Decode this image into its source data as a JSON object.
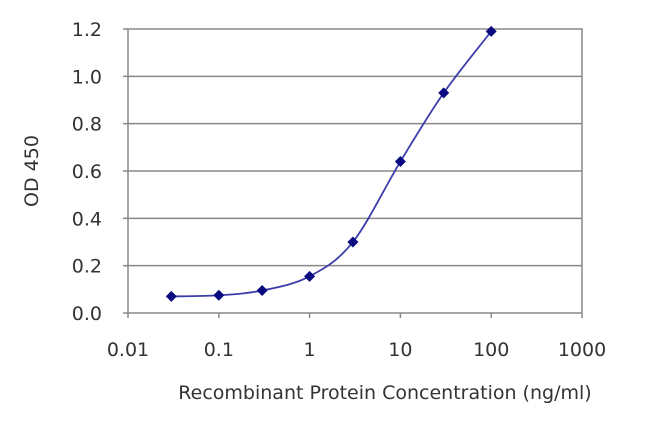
{
  "chart_data": {
    "type": "line",
    "title": "",
    "xlabel": "Recombinant Protein Concentration (ng/ml)",
    "ylabel": "OD 450",
    "x_scale": "log",
    "xlim": [
      0.01,
      1000
    ],
    "ylim": [
      0,
      1.2
    ],
    "x_ticks": [
      "0.01",
      "0.1",
      "1",
      "10",
      "100",
      "1000"
    ],
    "y_ticks": [
      "0.0",
      "0.2",
      "0.4",
      "0.6",
      "0.8",
      "1.0",
      "1.2"
    ],
    "grid": "horizontal",
    "series": [
      {
        "x": [
          0.03,
          0.1,
          0.3,
          1,
          3,
          10,
          30,
          100
        ],
        "y": [
          0.07,
          0.075,
          0.095,
          0.155,
          0.3,
          0.64,
          0.93,
          1.19
        ]
      }
    ],
    "colors": {
      "line": "#3d3daa",
      "marker": "#0a0a80",
      "grid": "#888888",
      "frame": "#888888"
    }
  }
}
